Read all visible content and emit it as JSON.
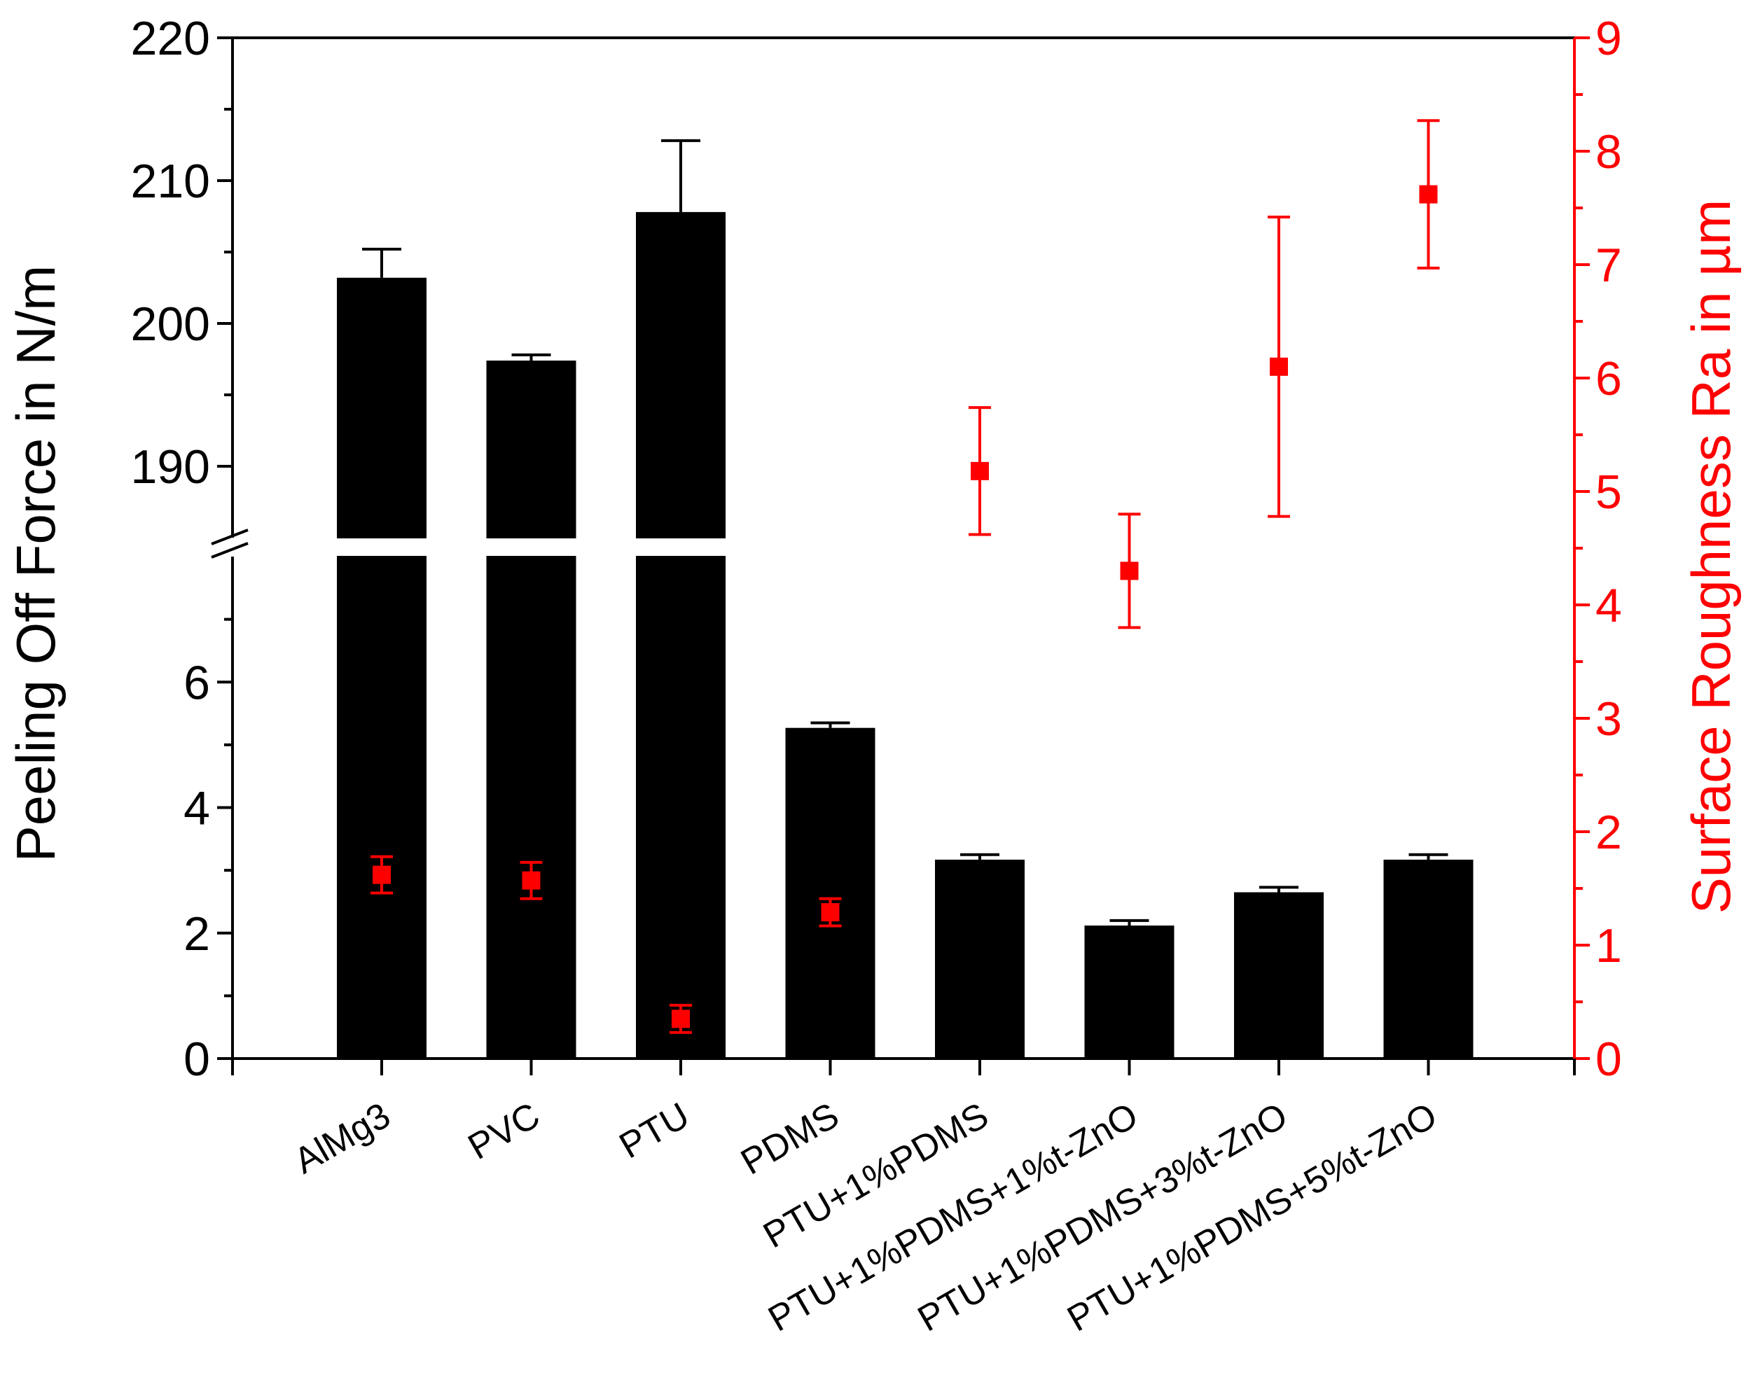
{
  "chart_data": {
    "type": "bar",
    "title": "",
    "xlabel": "",
    "ylabel": "Peeling Off Force in N/m",
    "y2label": "Surface Roughness Ra in µm",
    "categories": [
      "AlMg3",
      "PVC",
      "PTU",
      "PDMS",
      "PTU+1%PDMS",
      "PTU+1%PDMS+1%t-ZnO",
      "PTU+1%PDMS+3%t-ZnO",
      "PTU+1%PDMS+5%t-ZnO"
    ],
    "y_axis_break": {
      "lower_range": [
        0,
        8
      ],
      "upper_range": [
        185,
        220
      ],
      "lower_ticks": [
        "0",
        "2",
        "4",
        "6"
      ],
      "upper_ticks": [
        "190",
        "200",
        "210",
        "220"
      ]
    },
    "y2_range": [
      0,
      9
    ],
    "y2_ticks": [
      "0",
      "1",
      "2",
      "3",
      "4",
      "5",
      "6",
      "7",
      "8",
      "9"
    ],
    "series": [
      {
        "name": "Peeling Off Force",
        "axis": "left",
        "style": "bar",
        "color": "#000000",
        "values": [
          203.2,
          197.4,
          207.8,
          5.27,
          3.17,
          2.12,
          2.65,
          3.17
        ],
        "errors": [
          2.0,
          0.4,
          5.0,
          0.08,
          0.08,
          0.08,
          0.08,
          0.08
        ]
      },
      {
        "name": "Surface Roughness Ra",
        "axis": "right",
        "style": "scatter",
        "color": "#ff0000",
        "values": [
          1.62,
          1.57,
          0.35,
          1.29,
          5.18,
          4.3,
          6.1,
          7.62
        ],
        "errors": [
          0.16,
          0.16,
          0.12,
          0.12,
          0.56,
          0.5,
          1.32,
          0.65
        ]
      }
    ]
  }
}
